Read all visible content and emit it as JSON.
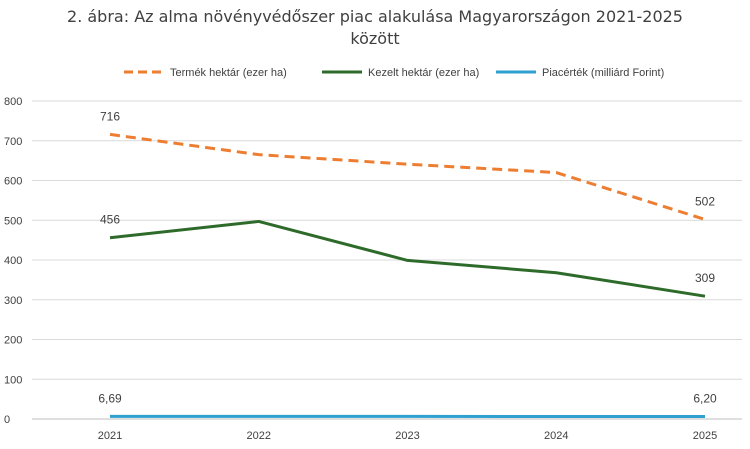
{
  "chart_data": {
    "type": "line",
    "title_line1": "2. ábra: Az alma növényvédőszer piac alakulása Magyarországon 2021-2025",
    "title_line2": "között",
    "categories": [
      "2021",
      "2022",
      "2023",
      "2024",
      "2025"
    ],
    "ylim": [
      0,
      800
    ],
    "yticks": [
      "0",
      "100",
      "200",
      "300",
      "400",
      "500",
      "600",
      "700",
      "800"
    ],
    "legend_position": "top",
    "grid": true,
    "series": [
      {
        "name": "Termék hektár (ezer ha)",
        "values": [
          716,
          665,
          641,
          620,
          502
        ],
        "color": "#ED7D31",
        "style": "dashed",
        "labels": [
          "716",
          "",
          "",
          "",
          "502"
        ]
      },
      {
        "name": "Kezelt hektár (ezer ha)",
        "values": [
          456,
          497,
          399,
          368,
          309
        ],
        "color": "#2E6B2A",
        "style": "solid",
        "labels": [
          "456",
          "",
          "",
          "",
          "309"
        ]
      },
      {
        "name": "Piacérték (milliárd Forint)",
        "values": [
          6.69,
          6.6,
          6.5,
          6.4,
          6.2
        ],
        "color": "#2EA1D1",
        "style": "solid",
        "labels": [
          "6,69",
          "",
          "",
          "",
          "6,20"
        ]
      }
    ]
  }
}
